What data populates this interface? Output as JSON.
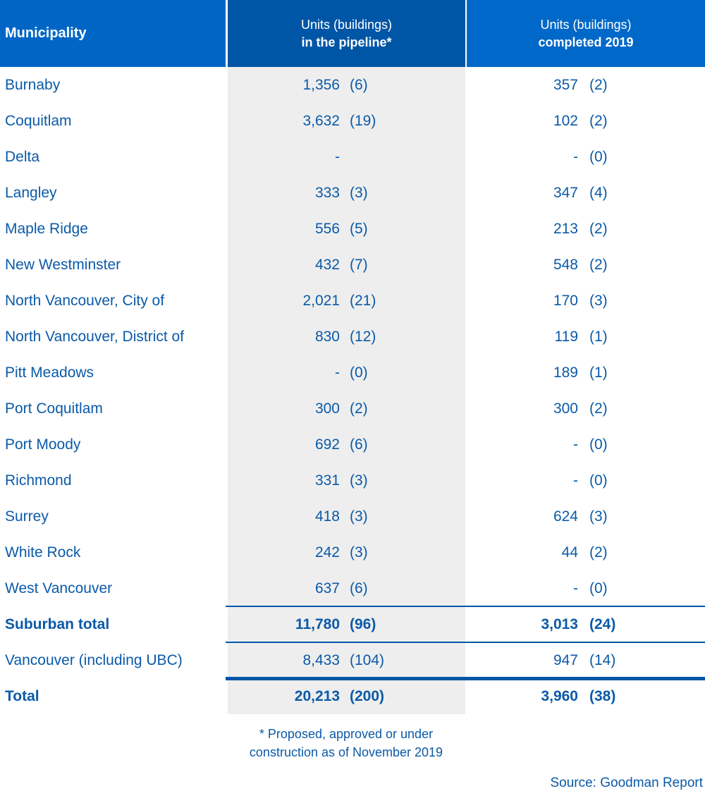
{
  "header": {
    "col1": "Municipality",
    "col2_line1": "Units (buildings)",
    "col2_line2": "in the pipeline*",
    "col3_line1": "Units (buildings)",
    "col3_line2": "completed 2019"
  },
  "rows": [
    {
      "name": "Burnaby",
      "pipeline": "1,356",
      "pipeline_bldg": "(6)",
      "completed": "357",
      "completed_bldg": "(2)"
    },
    {
      "name": "Coquitlam",
      "pipeline": "3,632",
      "pipeline_bldg": "(19)",
      "completed": "102",
      "completed_bldg": "(2)"
    },
    {
      "name": "Delta",
      "pipeline": "-",
      "pipeline_bldg": "",
      "completed": "-",
      "completed_bldg": "(0)"
    },
    {
      "name": "Langley",
      "pipeline": "333",
      "pipeline_bldg": "(3)",
      "completed": "347",
      "completed_bldg": "(4)"
    },
    {
      "name": "Maple Ridge",
      "pipeline": "556",
      "pipeline_bldg": "(5)",
      "completed": "213",
      "completed_bldg": "(2)"
    },
    {
      "name": "New Westminster",
      "pipeline": "432",
      "pipeline_bldg": "(7)",
      "completed": "548",
      "completed_bldg": "(2)"
    },
    {
      "name": "North Vancouver, City of",
      "pipeline": "2,021",
      "pipeline_bldg": "(21)",
      "completed": "170",
      "completed_bldg": "(3)"
    },
    {
      "name": "North Vancouver, District of",
      "pipeline": "830",
      "pipeline_bldg": "(12)",
      "completed": "119",
      "completed_bldg": "(1)"
    },
    {
      "name": "Pitt Meadows",
      "pipeline": "-",
      "pipeline_bldg": "(0)",
      "completed": "189",
      "completed_bldg": "(1)"
    },
    {
      "name": "Port Coquitlam",
      "pipeline": "300",
      "pipeline_bldg": "(2)",
      "completed": "300",
      "completed_bldg": "(2)"
    },
    {
      "name": "Port Moody",
      "pipeline": "692",
      "pipeline_bldg": "(6)",
      "completed": "-",
      "completed_bldg": "(0)"
    },
    {
      "name": "Richmond",
      "pipeline": "331",
      "pipeline_bldg": "(3)",
      "completed": "-",
      "completed_bldg": "(0)"
    },
    {
      "name": "Surrey",
      "pipeline": "418",
      "pipeline_bldg": "(3)",
      "completed": "624",
      "completed_bldg": "(3)"
    },
    {
      "name": "White Rock",
      "pipeline": "242",
      "pipeline_bldg": "(3)",
      "completed": "44",
      "completed_bldg": "(2)"
    },
    {
      "name": "West Vancouver",
      "pipeline": "637",
      "pipeline_bldg": "(6)",
      "completed": "-",
      "completed_bldg": "(0)"
    },
    {
      "name": "Suburban total",
      "pipeline": "11,780",
      "pipeline_bldg": "(96)",
      "completed": "3,013",
      "completed_bldg": "(24)",
      "bold": true
    },
    {
      "name": "Vancouver (including UBC)",
      "pipeline": "8,433",
      "pipeline_bldg": "(104)",
      "completed": "947",
      "completed_bldg": "(14)"
    },
    {
      "name": "Total",
      "pipeline": "20,213",
      "pipeline_bldg": "(200)",
      "completed": "3,960",
      "completed_bldg": "(38)",
      "bold": true
    }
  ],
  "footnote_line1": "* Proposed, approved or under",
  "footnote_line2": "construction as of November 2019",
  "source": "Source: Goodman Report"
}
